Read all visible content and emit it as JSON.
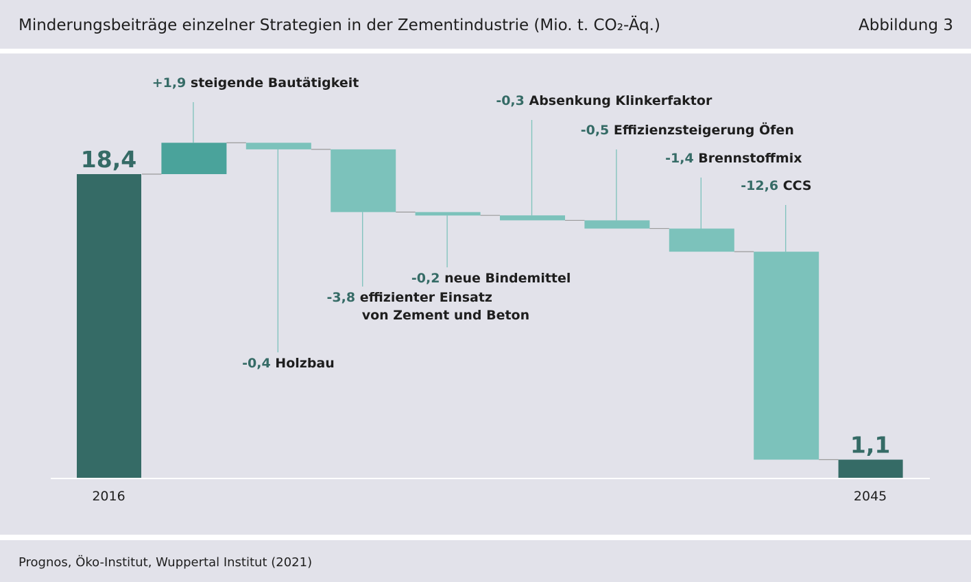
{
  "header": {
    "title": "Minderungsbeiträge einzelner Strategien in der Zementindustrie (Mio. t. CO₂-Äq.)",
    "figure_label": "Abbildung 3"
  },
  "footer": {
    "source": "Prognos, Öko-Institut, Wuppertal Institut (2021)"
  },
  "colors": {
    "total": "#356b66",
    "increase": "#4aa39b",
    "decrease": "#7cc2bb",
    "value_text": "#356b66",
    "label_text": "#1e1e1e",
    "leader": "#7cc2bb",
    "connector": "#9a9a9a",
    "baseline": "#ffffff"
  },
  "chart_data": {
    "type": "waterfall",
    "title": "Minderungsbeiträge einzelner Strategien in der Zementindustrie (Mio. t. CO₂-Äq.)",
    "start": {
      "category": "2016",
      "value": 18.4,
      "value_label": "18,4"
    },
    "end": {
      "category": "2045",
      "value": 1.1,
      "value_label": "1,1"
    },
    "steps": [
      {
        "value": 1.9,
        "value_label": "+1,9",
        "label": [
          "steigende Bautätigkeit"
        ],
        "label_position": "above"
      },
      {
        "value": -0.4,
        "value_label": "-0,4",
        "label": [
          "Holzbau"
        ],
        "label_position": "below"
      },
      {
        "value": -3.8,
        "value_label": "-3,8",
        "label": [
          "effizienter Einsatz",
          "von Zement und Beton"
        ],
        "label_position": "below"
      },
      {
        "value": -0.2,
        "value_label": "-0,2",
        "label": [
          "neue Bindemittel"
        ],
        "label_position": "below"
      },
      {
        "value": -0.3,
        "value_label": "-0,3",
        "label": [
          "Absenkung Klinkerfaktor"
        ],
        "label_position": "above"
      },
      {
        "value": -0.5,
        "value_label": "-0,5",
        "label": [
          "Effizienzsteigerung Öfen"
        ],
        "label_position": "above"
      },
      {
        "value": -1.4,
        "value_label": "-1,4",
        "label": [
          "Brennstoffmix"
        ],
        "label_position": "above"
      },
      {
        "value": -12.6,
        "value_label": "-12,6",
        "label": [
          "CCS"
        ],
        "label_position": "above"
      }
    ],
    "ylim": [
      0,
      20.3
    ],
    "grid": false,
    "legend": "none"
  }
}
